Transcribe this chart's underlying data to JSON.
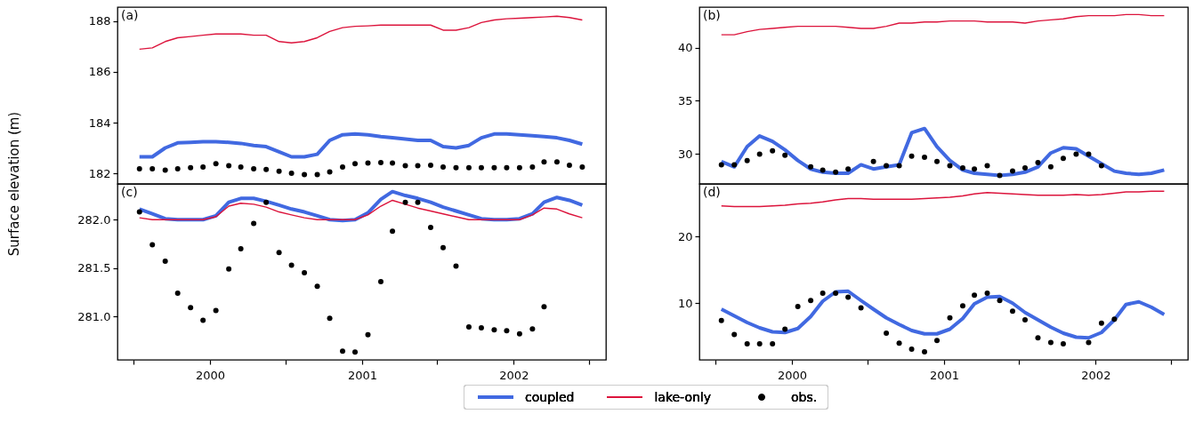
{
  "chart_data": [
    {
      "type": "line",
      "ylabel": "Surface elevation (m)",
      "annotations": [
        "(a)"
      ],
      "legend": "bottom",
      "tick_labels": "y",
      "x": [
        "1999-07-15",
        "1999-08-15",
        "1999-09-15",
        "1999-10-15",
        "1999-11-15",
        "1999-12-15",
        "2000-01-15",
        "2000-02-15",
        "2000-03-15",
        "2000-04-15",
        "2000-05-15",
        "2000-06-15",
        "2000-07-15",
        "2000-08-15",
        "2000-09-15",
        "2000-10-15",
        "2000-11-15",
        "2000-12-15",
        "2001-01-15",
        "2001-02-15",
        "2001-03-15",
        "2001-04-15",
        "2001-05-15",
        "2001-06-15",
        "2001-07-15",
        "2001-08-15",
        "2001-09-15",
        "2001-10-15",
        "2001-11-15",
        "2001-12-15",
        "2002-01-15",
        "2002-02-15",
        "2002-03-15",
        "2002-04-15",
        "2002-05-15",
        "2002-06-15"
      ],
      "xlim": [
        "1999-05-23",
        "2002-08-11"
      ],
      "ylim": [
        181.58,
        188.56
      ],
      "yticks": [
        182,
        184,
        186,
        188
      ],
      "series": [
        {
          "name": "coupled",
          "type": "line",
          "color": "#4169e1",
          "values": [
            182.65,
            182.65,
            183.0,
            183.2,
            183.22,
            183.25,
            183.25,
            183.22,
            183.18,
            183.1,
            183.05,
            182.85,
            182.65,
            182.65,
            182.75,
            183.3,
            183.52,
            183.55,
            183.52,
            183.45,
            183.4,
            183.35,
            183.3,
            183.3,
            183.05,
            183.0,
            183.1,
            183.4,
            183.55,
            183.55,
            183.52,
            183.48,
            183.45,
            183.4,
            183.3,
            183.15
          ]
        },
        {
          "name": "lake-only",
          "type": "line",
          "color": "#dc143c",
          "values": [
            186.9,
            186.95,
            187.2,
            187.35,
            187.4,
            187.45,
            187.5,
            187.5,
            187.5,
            187.45,
            187.45,
            187.2,
            187.15,
            187.2,
            187.35,
            187.6,
            187.75,
            187.8,
            187.82,
            187.85,
            187.85,
            187.85,
            187.85,
            187.85,
            187.65,
            187.65,
            187.75,
            187.95,
            188.05,
            188.1,
            188.12,
            188.15,
            188.17,
            188.2,
            188.15,
            188.05
          ]
        },
        {
          "name": "obs.",
          "type": "scatter",
          "color": "#000000",
          "values": [
            182.18,
            182.18,
            182.12,
            182.18,
            182.22,
            182.25,
            182.38,
            182.3,
            182.25,
            182.18,
            182.15,
            182.08,
            182.0,
            181.95,
            181.95,
            182.05,
            182.25,
            182.38,
            182.4,
            182.42,
            182.4,
            182.3,
            182.3,
            182.32,
            182.25,
            182.22,
            182.22,
            182.22,
            182.22,
            182.22,
            182.22,
            182.25,
            182.45,
            182.45,
            182.32,
            182.25
          ]
        }
      ]
    },
    {
      "type": "line",
      "annotations": [
        "(b)"
      ],
      "legend": "bottom",
      "tick_labels": "y",
      "x": [
        "1999-07-15",
        "1999-08-15",
        "1999-09-15",
        "1999-10-15",
        "1999-11-15",
        "1999-12-15",
        "2000-01-15",
        "2000-02-15",
        "2000-03-15",
        "2000-04-15",
        "2000-05-15",
        "2000-06-15",
        "2000-07-15",
        "2000-08-15",
        "2000-09-15",
        "2000-10-15",
        "2000-11-15",
        "2000-12-15",
        "2001-01-15",
        "2001-02-15",
        "2001-03-15",
        "2001-04-15",
        "2001-05-15",
        "2001-06-15",
        "2001-07-15",
        "2001-08-15",
        "2001-09-15",
        "2001-10-15",
        "2001-11-15",
        "2001-12-15",
        "2002-01-15",
        "2002-02-15",
        "2002-03-15",
        "2002-04-15",
        "2002-05-15",
        "2002-06-15"
      ],
      "xlim": [
        "1999-05-23",
        "2002-08-11"
      ],
      "ylim": [
        27.2,
        43.8
      ],
      "yticks": [
        30,
        35,
        40
      ],
      "series": [
        {
          "name": "coupled",
          "type": "line",
          "color": "#4169e1",
          "values": [
            29.3,
            28.8,
            30.7,
            31.7,
            31.2,
            30.4,
            29.4,
            28.6,
            28.3,
            28.2,
            28.2,
            29.0,
            28.6,
            28.8,
            29.0,
            32.0,
            32.4,
            30.7,
            29.4,
            28.5,
            28.2,
            28.1,
            28.0,
            28.1,
            28.3,
            28.8,
            30.1,
            30.6,
            30.5,
            29.8,
            29.1,
            28.4,
            28.2,
            28.1,
            28.2,
            28.5
          ]
        },
        {
          "name": "lake-only",
          "type": "line",
          "color": "#dc143c",
          "values": [
            41.2,
            41.2,
            41.5,
            41.7,
            41.8,
            41.9,
            42.0,
            42.0,
            42.0,
            42.0,
            41.9,
            41.8,
            41.8,
            42.0,
            42.3,
            42.3,
            42.4,
            42.4,
            42.5,
            42.5,
            42.5,
            42.4,
            42.4,
            42.4,
            42.3,
            42.5,
            42.6,
            42.7,
            42.9,
            43.0,
            43.0,
            43.0,
            43.1,
            43.1,
            43.0,
            43.0
          ]
        },
        {
          "name": "obs.",
          "type": "scatter",
          "color": "#000000",
          "values": [
            29.0,
            29.0,
            29.4,
            30.0,
            30.3,
            29.9,
            null,
            28.8,
            28.5,
            28.3,
            28.6,
            null,
            29.3,
            28.9,
            28.9,
            29.8,
            29.7,
            29.3,
            28.9,
            28.7,
            28.6,
            28.9,
            28.0,
            28.4,
            28.7,
            29.2,
            28.8,
            29.6,
            30.0,
            30.0,
            28.9,
            null,
            null,
            null,
            null,
            null
          ]
        }
      ]
    },
    {
      "type": "line",
      "annotations": [
        "(c)"
      ],
      "legend": "bottom",
      "x": [
        "1999-07-15",
        "1999-08-15",
        "1999-09-15",
        "1999-10-15",
        "1999-11-15",
        "1999-12-15",
        "2000-01-15",
        "2000-02-15",
        "2000-03-15",
        "2000-04-15",
        "2000-05-15",
        "2000-06-15",
        "2000-07-15",
        "2000-08-15",
        "2000-09-15",
        "2000-10-15",
        "2000-11-15",
        "2000-12-15",
        "2001-01-15",
        "2001-02-15",
        "2001-03-15",
        "2001-04-15",
        "2001-05-15",
        "2001-06-15",
        "2001-07-15",
        "2001-08-15",
        "2001-09-15",
        "2001-10-15",
        "2001-11-15",
        "2001-12-15",
        "2002-01-15",
        "2002-02-15",
        "2002-03-15",
        "2002-04-15",
        "2002-05-15",
        "2002-06-15"
      ],
      "xlim": [
        "1999-05-23",
        "2002-08-11"
      ],
      "ylim": [
        280.55,
        282.37
      ],
      "yticks": [
        {
          "value": 281,
          "label": "281.0"
        },
        281.5,
        {
          "value": 282,
          "label": "282.0"
        }
      ],
      "xticks": [
        {
          "value": "1999-07-01",
          "label": null
        },
        {
          "value": "2000-01-01",
          "label": "2000"
        },
        {
          "value": "2000-07-01",
          "label": null
        },
        {
          "value": "2001-01-01",
          "label": "2001"
        },
        {
          "value": "2001-07-01",
          "label": null
        },
        {
          "value": "2002-01-01",
          "label": "2002"
        },
        {
          "value": "2002-07-01",
          "label": null
        }
      ],
      "series": [
        {
          "name": "coupled",
          "type": "line",
          "color": "#4169e1",
          "values": [
            282.11,
            282.06,
            282.01,
            282.0,
            282.0,
            282.0,
            282.04,
            282.18,
            282.22,
            282.22,
            282.19,
            282.15,
            282.11,
            282.08,
            282.04,
            282.0,
            281.99,
            282.0,
            282.07,
            282.21,
            282.29,
            282.25,
            282.22,
            282.18,
            282.13,
            282.09,
            282.05,
            282.01,
            282.0,
            282.0,
            282.01,
            282.06,
            282.18,
            282.23,
            282.2,
            282.15
          ]
        },
        {
          "name": "lake-only",
          "type": "line",
          "color": "#dc143c",
          "values": [
            282.02,
            282.0,
            282.0,
            282.0,
            282.0,
            282.0,
            282.03,
            282.14,
            282.17,
            282.16,
            282.13,
            282.08,
            282.05,
            282.02,
            282.0,
            282.0,
            282.0,
            282.0,
            282.05,
            282.14,
            282.2,
            282.16,
            282.12,
            282.09,
            282.06,
            282.03,
            282.0,
            282.0,
            282.0,
            282.0,
            282.0,
            282.05,
            282.12,
            282.11,
            282.06,
            282.02
          ]
        },
        {
          "name": "obs.",
          "type": "scatter",
          "color": "#000000",
          "values": [
            282.08,
            281.74,
            281.57,
            281.24,
            281.09,
            280.96,
            281.06,
            281.49,
            281.7,
            281.96,
            282.18,
            281.66,
            281.53,
            281.45,
            281.31,
            280.98,
            280.64,
            280.63,
            280.81,
            281.36,
            281.88,
            282.18,
            282.18,
            281.92,
            281.71,
            281.52,
            280.89,
            280.88,
            280.86,
            280.85,
            280.82,
            280.87,
            281.1,
            null,
            null,
            null
          ]
        }
      ]
    },
    {
      "type": "line",
      "annotations": [
        "(d)"
      ],
      "legend": "bottom",
      "x": [
        "1999-07-15",
        "1999-08-15",
        "1999-09-15",
        "1999-10-15",
        "1999-11-15",
        "1999-12-15",
        "2000-01-15",
        "2000-02-15",
        "2000-03-15",
        "2000-04-15",
        "2000-05-15",
        "2000-06-15",
        "2000-07-15",
        "2000-08-15",
        "2000-09-15",
        "2000-10-15",
        "2000-11-15",
        "2000-12-15",
        "2001-01-15",
        "2001-02-15",
        "2001-03-15",
        "2001-04-15",
        "2001-05-15",
        "2001-06-15",
        "2001-07-15",
        "2001-08-15",
        "2001-09-15",
        "2001-10-15",
        "2001-11-15",
        "2001-12-15",
        "2002-01-15",
        "2002-02-15",
        "2002-03-15",
        "2002-04-15",
        "2002-05-15",
        "2002-06-15"
      ],
      "xlim": [
        "1999-05-23",
        "2002-08-11"
      ],
      "ylim": [
        1.5,
        27.9
      ],
      "yticks": [
        10,
        20
      ],
      "xticks": [
        {
          "value": "1999-07-01",
          "label": null
        },
        {
          "value": "2000-01-01",
          "label": "2000"
        },
        {
          "value": "2000-07-01",
          "label": null
        },
        {
          "value": "2001-01-01",
          "label": "2001"
        },
        {
          "value": "2001-07-01",
          "label": null
        },
        {
          "value": "2002-01-01",
          "label": "2002"
        },
        {
          "value": "2002-07-01",
          "label": null
        }
      ],
      "series": [
        {
          "name": "coupled",
          "type": "line",
          "color": "#4169e1",
          "values": [
            9.1,
            8.1,
            7.1,
            6.3,
            5.7,
            5.6,
            6.2,
            8.0,
            10.3,
            11.7,
            11.8,
            10.4,
            9.1,
            7.8,
            6.8,
            5.9,
            5.4,
            5.4,
            6.1,
            7.7,
            9.9,
            10.9,
            11.0,
            10.0,
            8.6,
            7.5,
            6.4,
            5.5,
            4.9,
            4.8,
            5.6,
            7.5,
            9.8,
            10.2,
            9.4,
            8.3
          ]
        },
        {
          "name": "lake-only",
          "type": "line",
          "color": "#dc143c",
          "values": [
            24.6,
            24.5,
            24.5,
            24.5,
            24.6,
            24.7,
            24.9,
            25.0,
            25.2,
            25.5,
            25.7,
            25.7,
            25.6,
            25.6,
            25.6,
            25.6,
            25.7,
            25.8,
            25.9,
            26.1,
            26.4,
            26.6,
            26.5,
            26.4,
            26.3,
            26.2,
            26.2,
            26.2,
            26.3,
            26.2,
            26.3,
            26.5,
            26.7,
            26.7,
            26.8,
            26.8
          ]
        },
        {
          "name": "obs.",
          "type": "scatter",
          "color": "#000000",
          "values": [
            7.4,
            5.3,
            3.9,
            3.9,
            3.9,
            6.1,
            9.5,
            10.4,
            11.5,
            11.5,
            10.9,
            9.3,
            null,
            5.5,
            4.0,
            3.1,
            2.7,
            4.4,
            7.8,
            9.6,
            11.2,
            11.5,
            10.4,
            8.8,
            7.5,
            4.8,
            4.1,
            3.9,
            null,
            4.1,
            7.0,
            7.6,
            null,
            null,
            null,
            null
          ]
        }
      ]
    }
  ]
}
